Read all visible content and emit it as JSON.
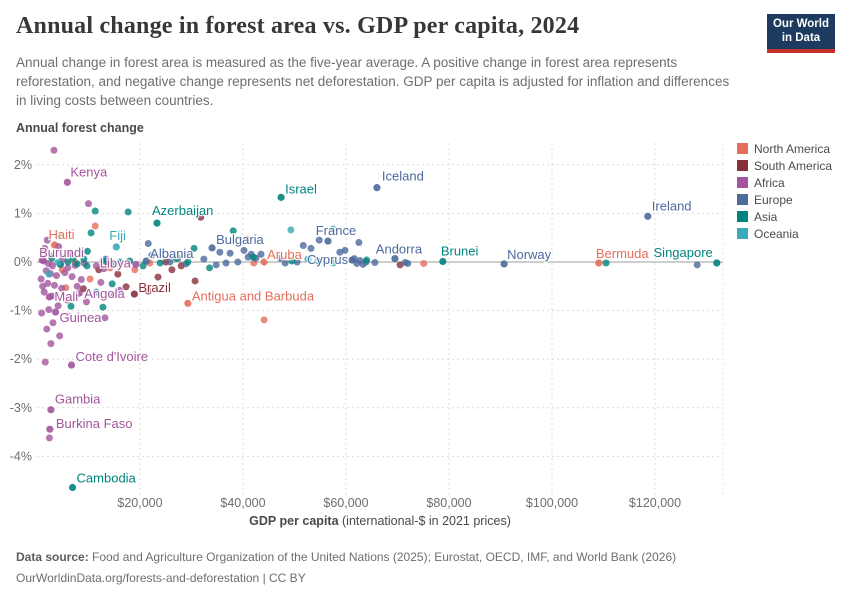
{
  "header": {
    "title": "Annual change in forest area vs. GDP per capita, 2024",
    "subtitle": "Annual change in forest area is measured as the five-year average. A positive change in forest area represents reforestation, and negative change represents net deforestation. GDP per capita is adjusted for inflation and differences in living costs between countries.",
    "logo_line1": "Our World",
    "logo_line2": "in Data",
    "logo_bg_color": "#1d3a5f",
    "logo_accent_color": "#c5342b"
  },
  "chart_data": {
    "type": "scatter",
    "title": "Annual change in forest area vs. GDP per capita, 2024",
    "y_axis_title": "Annual forest change",
    "x_axis_title_bold": "GDP per capita",
    "x_axis_title_note": "(international-$ in 2021 prices)",
    "xlim_dollars": [
      0,
      133000
    ],
    "ylim_percent": [
      -4.9,
      2.45
    ],
    "grid": "dashed",
    "legend_position": "right",
    "x_ticks": [
      {
        "v": 20,
        "label": "$20,000"
      },
      {
        "v": 40,
        "label": "$40,000"
      },
      {
        "v": 60,
        "label": "$60,000"
      },
      {
        "v": 80,
        "label": "$80,000"
      },
      {
        "v": 100,
        "label": "$100,000"
      },
      {
        "v": 120,
        "label": "$120,000"
      }
    ],
    "y_ticks": [
      {
        "v": 2,
        "label": "2%"
      },
      {
        "v": 1,
        "label": "1%"
      },
      {
        "v": 0,
        "label": "0%"
      },
      {
        "v": -1,
        "label": "-1%"
      },
      {
        "v": -2,
        "label": "-2%"
      },
      {
        "v": -3,
        "label": "-3%"
      },
      {
        "v": -4,
        "label": "-4%"
      }
    ],
    "series": [
      {
        "name": "North America",
        "color": "#E56E5A",
        "labeled": [
          {
            "name": "Haiti",
            "gdp_k": 3.4,
            "pct": 0.35,
            "dx": -6,
            "dy": -6
          },
          {
            "name": "Aruba",
            "gdp_k": 44.1,
            "pct": 0.0,
            "dx": 3,
            "dy": -3
          },
          {
            "name": "Antigua and Barbuda",
            "gdp_k": 29.3,
            "pct": -0.85,
            "dx": 4,
            "dy": -3
          },
          {
            "name": "Bermuda",
            "gdp_k": 109.1,
            "pct": -0.02,
            "dx": -3,
            "dy": -5
          }
        ],
        "points": [
          [
            11.3,
            0.74
          ],
          [
            40.8,
            0.47
          ],
          [
            4.9,
            -0.16
          ],
          [
            7.4,
            -0.01
          ],
          [
            14.2,
            -0.12
          ],
          [
            17.7,
            -0.01
          ],
          [
            19.0,
            -0.16
          ],
          [
            10.3,
            -0.35
          ],
          [
            5.6,
            -0.53
          ],
          [
            21.9,
            -0.02
          ],
          [
            42.1,
            -0.02
          ],
          [
            44.1,
            -1.19
          ],
          [
            75.1,
            -0.03
          ]
        ]
      },
      {
        "name": "South America",
        "color": "#883039",
        "labeled": [
          {
            "name": "Brazil",
            "gdp_k": 18.9,
            "pct": -0.66,
            "dx": 4,
            "dy": -2
          }
        ],
        "points": [
          [
            31.8,
            0.92
          ],
          [
            25.0,
            0.0
          ],
          [
            26.2,
            -0.16
          ],
          [
            28.0,
            -0.08
          ],
          [
            30.7,
            -0.39
          ],
          [
            23.5,
            -0.31
          ],
          [
            21.6,
            -0.6
          ],
          [
            17.3,
            -0.51
          ],
          [
            15.7,
            -0.25
          ],
          [
            13.8,
            -0.06
          ],
          [
            12.0,
            -0.16
          ],
          [
            9.0,
            -0.55
          ],
          [
            15.0,
            -0.68
          ],
          [
            70.5,
            -0.06
          ]
        ]
      },
      {
        "name": "Africa",
        "color": "#A2559C",
        "labeled": [
          {
            "name": "Kenya",
            "gdp_k": 5.9,
            "pct": 1.64,
            "dx": 3,
            "dy": -6
          },
          {
            "name": "Burundi",
            "gdp_k": 1.0,
            "pct": 0.04,
            "dx": -3,
            "dy": -3
          },
          {
            "name": "Libya",
            "gdp_k": 19.2,
            "pct": -0.05,
            "dx": -5,
            "dy": 3,
            "anchor": "end"
          },
          {
            "name": "Mali",
            "gdp_k": 2.4,
            "pct": -0.72,
            "dx": 5,
            "dy": 4
          },
          {
            "name": "Angola",
            "gdp_k": 8.2,
            "pct": -0.64,
            "dx": 5,
            "dy": 5
          },
          {
            "name": "Guinea",
            "gdp_k": 3.6,
            "pct": -1.03,
            "dx": 4,
            "dy": 10
          },
          {
            "name": "Cote d'Ivoire",
            "gdp_k": 6.7,
            "pct": -2.12,
            "dx": 4,
            "dy": -4
          },
          {
            "name": "Gambia",
            "gdp_k": 2.7,
            "pct": -3.04,
            "dx": 4,
            "dy": -6
          },
          {
            "name": "Burkina Faso",
            "gdp_k": 2.5,
            "pct": -3.44,
            "dx": 6,
            "dy": -1
          }
        ],
        "points": [
          [
            3.3,
            2.3
          ],
          [
            10.0,
            1.2
          ],
          [
            2.0,
            0.45
          ],
          [
            1.5,
            0.28
          ],
          [
            4.2,
            0.32
          ],
          [
            6.5,
            0.18
          ],
          [
            2.8,
            0.12
          ],
          [
            5.0,
            0.06
          ],
          [
            1.3,
            0.02
          ],
          [
            2.2,
            -0.03
          ],
          [
            3.0,
            -0.08
          ],
          [
            4.6,
            -0.05
          ],
          [
            6.0,
            -0.12
          ],
          [
            7.4,
            -0.07
          ],
          [
            9.2,
            -0.03
          ],
          [
            11.5,
            -0.08
          ],
          [
            13.0,
            -0.14
          ],
          [
            1.8,
            -0.18
          ],
          [
            2.6,
            -0.24
          ],
          [
            3.8,
            -0.28
          ],
          [
            5.4,
            -0.22
          ],
          [
            6.8,
            -0.3
          ],
          [
            8.6,
            -0.36
          ],
          [
            2.1,
            -0.44
          ],
          [
            3.4,
            -0.48
          ],
          [
            4.8,
            -0.54
          ],
          [
            7.8,
            -0.5
          ],
          [
            12.4,
            -0.42
          ],
          [
            16.0,
            -0.58
          ],
          [
            1.4,
            -0.62
          ],
          [
            2.9,
            -0.7
          ],
          [
            5.8,
            -0.78
          ],
          [
            9.6,
            -0.82
          ],
          [
            4.1,
            -0.9
          ],
          [
            2.3,
            -0.98
          ],
          [
            6.2,
            -1.12
          ],
          [
            13.2,
            -1.15
          ],
          [
            3.1,
            -1.25
          ],
          [
            1.9,
            -1.38
          ],
          [
            4.4,
            -1.52
          ],
          [
            2.7,
            -1.68
          ],
          [
            1.6,
            -2.06
          ],
          [
            0.9,
            -1.05
          ],
          [
            0.8,
            -0.35
          ],
          [
            1.1,
            -0.5
          ],
          [
            2.4,
            -3.62
          ]
        ]
      },
      {
        "name": "Europe",
        "color": "#4C6A9C",
        "labeled": [
          {
            "name": "Albania",
            "gdp_k": 21.2,
            "pct": 0.02,
            "dx": 4,
            "dy": -3
          },
          {
            "name": "Bulgaria",
            "gdp_k": 34.0,
            "pct": 0.29,
            "dx": 4,
            "dy": -4
          },
          {
            "name": "France",
            "gdp_k": 56.5,
            "pct": 0.43,
            "dx": 8,
            "dy": -6,
            "anchor": "middle"
          },
          {
            "name": "Cyprus",
            "gdp_k": 61.2,
            "pct": 0.04,
            "dx": -4,
            "dy": 4,
            "anchor": "end"
          },
          {
            "name": "Andorra",
            "gdp_k": 69.5,
            "pct": 0.07,
            "dx": 4,
            "dy": -5,
            "anchor": "middle"
          },
          {
            "name": "Iceland",
            "gdp_k": 66.0,
            "pct": 1.53,
            "dx": 5,
            "dy": -7
          },
          {
            "name": "Norway",
            "gdp_k": 90.7,
            "pct": -0.04,
            "dx": 3,
            "dy": -5
          },
          {
            "name": "Ireland",
            "gdp_k": 118.6,
            "pct": 0.94,
            "dx": 4,
            "dy": -6
          }
        ],
        "points": [
          [
            13.4,
            0.06
          ],
          [
            21.6,
            0.38
          ],
          [
            22.3,
            0.14
          ],
          [
            25.8,
            0.0
          ],
          [
            27.4,
            0.08
          ],
          [
            28.9,
            -0.04
          ],
          [
            32.4,
            0.06
          ],
          [
            34.8,
            -0.06
          ],
          [
            35.5,
            0.2
          ],
          [
            36.7,
            -0.02
          ],
          [
            37.5,
            0.18
          ],
          [
            39.0,
            0.0
          ],
          [
            40.2,
            0.24
          ],
          [
            41.0,
            0.1
          ],
          [
            41.6,
            0.16
          ],
          [
            42.5,
            0.08
          ],
          [
            43.5,
            0.16
          ],
          [
            47.2,
            0.08
          ],
          [
            48.2,
            -0.02
          ],
          [
            50.5,
            0.0
          ],
          [
            51.7,
            0.34
          ],
          [
            53.2,
            0.28
          ],
          [
            54.8,
            0.45
          ],
          [
            58.8,
            0.2
          ],
          [
            59.8,
            0.24
          ],
          [
            61.6,
            0.07
          ],
          [
            62.1,
            -0.03
          ],
          [
            62.5,
            0.4
          ],
          [
            62.7,
            0.03
          ],
          [
            63.3,
            -0.05
          ],
          [
            63.9,
            0.0
          ],
          [
            65.6,
            -0.01
          ],
          [
            71.5,
            -0.01
          ],
          [
            72.0,
            -0.03
          ],
          [
            128.2,
            -0.06
          ]
        ]
      },
      {
        "name": "Asia",
        "color": "#00847E",
        "labeled": [
          {
            "name": "Azerbaijan",
            "gdp_k": 23.3,
            "pct": 0.8,
            "dx": -5,
            "dy": -8
          },
          {
            "name": "Israel",
            "gdp_k": 47.4,
            "pct": 1.33,
            "dx": 4,
            "dy": -4
          },
          {
            "name": "Brunei",
            "gdp_k": 78.8,
            "pct": 0.01,
            "dx": -2,
            "dy": -6
          },
          {
            "name": "Singapore",
            "gdp_k": 132.0,
            "pct": -0.02,
            "dx": -4,
            "dy": -6,
            "anchor": "end"
          },
          {
            "name": "Cambodia",
            "gdp_k": 6.9,
            "pct": -4.64,
            "dx": 4,
            "dy": -5
          }
        ],
        "points": [
          [
            11.3,
            1.05
          ],
          [
            17.7,
            1.03
          ],
          [
            10.5,
            0.6
          ],
          [
            4.3,
            0.55
          ],
          [
            38.1,
            0.64
          ],
          [
            30.5,
            0.28
          ],
          [
            2.9,
            0.08
          ],
          [
            4.5,
            -0.05
          ],
          [
            6.0,
            0.0
          ],
          [
            7.0,
            0.08
          ],
          [
            9.1,
            0.06
          ],
          [
            9.8,
            0.22
          ],
          [
            12.8,
            0.02
          ],
          [
            15.0,
            -0.06
          ],
          [
            16.1,
            0.0
          ],
          [
            18.0,
            0.02
          ],
          [
            20.6,
            -0.08
          ],
          [
            23.9,
            -0.02
          ],
          [
            27.0,
            0.08
          ],
          [
            29.3,
            0.0
          ],
          [
            33.5,
            -0.12
          ],
          [
            42.0,
            0.1
          ],
          [
            49.5,
            0.02
          ],
          [
            54.6,
            0.02
          ],
          [
            14.6,
            -0.45
          ],
          [
            11.5,
            -0.62
          ],
          [
            6.6,
            -0.91
          ],
          [
            12.8,
            -0.93
          ],
          [
            9.7,
            -0.08
          ],
          [
            7.8,
            -0.04
          ],
          [
            110.5,
            -0.02
          ],
          [
            64.0,
            0.04
          ]
        ]
      },
      {
        "name": "Oceania",
        "color": "#38AABA",
        "labeled": [
          {
            "name": "Fiji",
            "gdp_k": 15.4,
            "pct": 0.31,
            "dx": -7,
            "dy": -7
          }
        ],
        "points": [
          [
            49.3,
            0.66
          ],
          [
            57.5,
            0.68
          ],
          [
            57.5,
            -0.02
          ],
          [
            52.6,
            0.06
          ],
          [
            4.1,
            -0.01
          ],
          [
            2.3,
            -0.25
          ]
        ]
      }
    ]
  },
  "footer": {
    "source_label": "Data source:",
    "source_text": " Food and Agriculture Organization of the United Nations (2025); Eurostat, OECD, IMF, and World Bank (2026)",
    "link": "OurWorldinData.org/forests-and-deforestation",
    "license": " | CC BY"
  }
}
